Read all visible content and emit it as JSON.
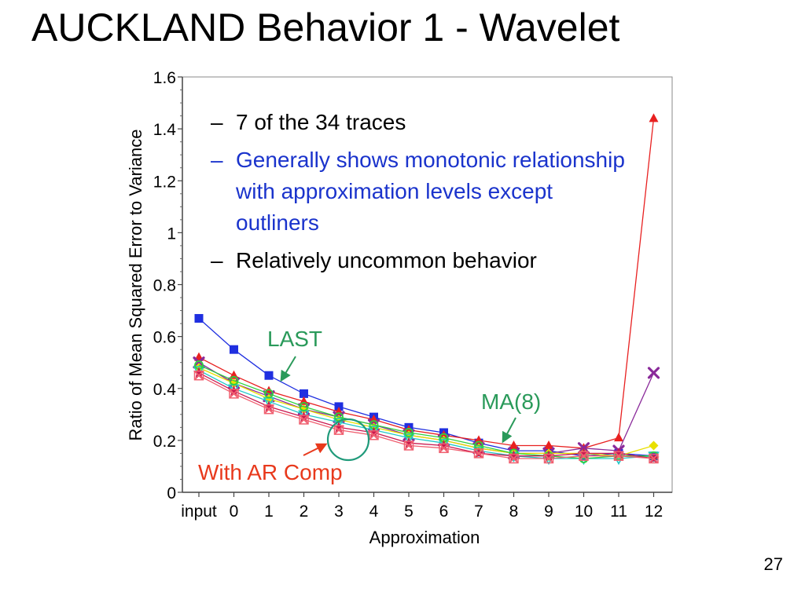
{
  "slide": {
    "title": "AUCKLAND Behavior 1 - Wavelet",
    "page_number": "27",
    "bullets": [
      {
        "text": "7 of the 34 traces",
        "color": "#000000"
      },
      {
        "text": "Generally shows monotonic relationship with approximation levels except outliners",
        "color": "#1a33cc"
      },
      {
        "text": "Relatively uncommon behavior",
        "color": "#000000"
      }
    ],
    "annotations": {
      "last": "LAST",
      "ma8": "MA(8)",
      "ar_comp": "With AR Comp"
    }
  },
  "chart_data": {
    "type": "line",
    "xlabel": "Approximation",
    "ylabel": "Ratio of Mean Squared Error to Variance",
    "categories": [
      "input",
      "0",
      "1",
      "2",
      "3",
      "4",
      "5",
      "6",
      "7",
      "8",
      "9",
      "10",
      "11",
      "12"
    ],
    "ylim": [
      0,
      1.6
    ],
    "yticks": [
      "0",
      "0.2",
      "0.4",
      "0.6",
      "0.8",
      "1",
      "1.2",
      "1.4",
      "1.6"
    ],
    "grid": false,
    "series": [
      {
        "color": "#1f2fe0",
        "marker": "square",
        "values": [
          0.67,
          0.55,
          0.45,
          0.38,
          0.33,
          0.29,
          0.25,
          0.23,
          0.19,
          0.16,
          0.16,
          0.14,
          0.15,
          0.14
        ]
      },
      {
        "color": "#e82020",
        "marker": "triangle",
        "values": [
          0.52,
          0.45,
          0.39,
          0.35,
          0.31,
          0.28,
          0.24,
          0.22,
          0.2,
          0.18,
          0.18,
          0.17,
          0.21,
          1.44
        ]
      },
      {
        "color": "#8a2a9a",
        "marker": "x",
        "values": [
          0.5,
          0.42,
          0.37,
          0.32,
          0.29,
          0.26,
          0.22,
          0.2,
          0.17,
          0.15,
          0.15,
          0.17,
          0.16,
          0.46
        ]
      },
      {
        "color": "#e8e000",
        "marker": "diamond",
        "values": [
          0.48,
          0.42,
          0.36,
          0.32,
          0.28,
          0.25,
          0.22,
          0.2,
          0.17,
          0.15,
          0.15,
          0.15,
          0.14,
          0.18
        ]
      },
      {
        "color": "#20c8c8",
        "marker": "triangle-down",
        "values": [
          0.47,
          0.4,
          0.35,
          0.3,
          0.27,
          0.24,
          0.21,
          0.19,
          0.16,
          0.14,
          0.13,
          0.13,
          0.13,
          0.14
        ]
      },
      {
        "color": "#30d040",
        "marker": "circle",
        "values": [
          0.49,
          0.43,
          0.38,
          0.33,
          0.29,
          0.26,
          0.23,
          0.21,
          0.18,
          0.15,
          0.14,
          0.13,
          0.14,
          0.14
        ]
      },
      {
        "color": "#c81850",
        "marker": "star",
        "values": [
          0.46,
          0.39,
          0.33,
          0.29,
          0.25,
          0.23,
          0.19,
          0.18,
          0.15,
          0.14,
          0.14,
          0.15,
          0.15,
          0.13
        ]
      },
      {
        "color": "#f06070",
        "marker": "x-box",
        "values": [
          0.45,
          0.38,
          0.32,
          0.28,
          0.24,
          0.22,
          0.18,
          0.17,
          0.15,
          0.13,
          0.13,
          0.14,
          0.14,
          0.13
        ]
      }
    ]
  }
}
